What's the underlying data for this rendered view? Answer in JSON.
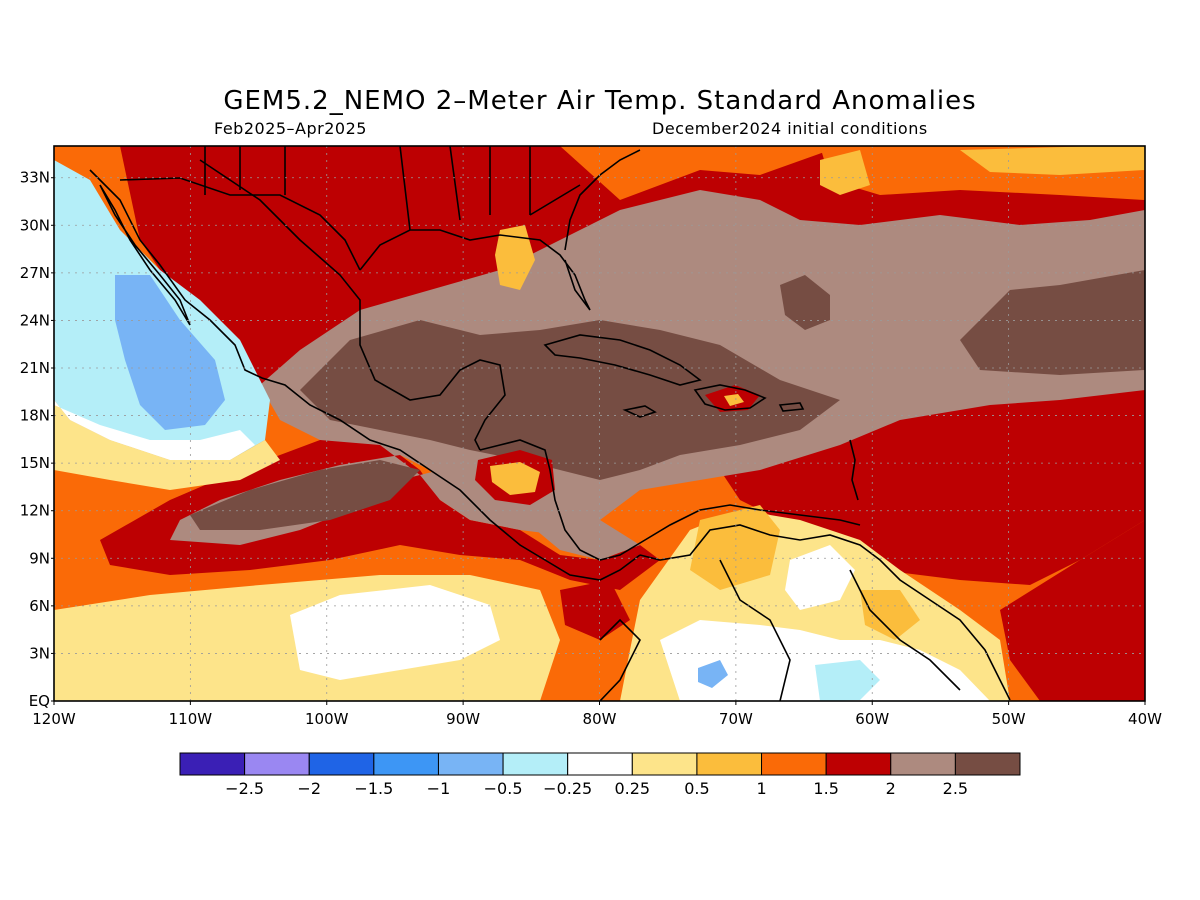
{
  "title": "GEM5.2_NEMO 2–Meter Air Temp. Standard Anomalies",
  "period": "Feb2025–Apr2025",
  "init": "December2024 initial conditions",
  "lat_labels": [
    "EQ",
    "3N",
    "6N",
    "9N",
    "12N",
    "15N",
    "18N",
    "21N",
    "24N",
    "27N",
    "30N",
    "33N"
  ],
  "lon_labels": [
    "120W",
    "110W",
    "100W",
    "90W",
    "80W",
    "70W",
    "60W",
    "50W",
    "40W"
  ],
  "colorbar": {
    "colors": [
      "#3a1fb5",
      "#9a87f2",
      "#1f64e6",
      "#3d96f5",
      "#78b4f5",
      "#b4eef8",
      "#ffffff",
      "#fde48a",
      "#fbbd3c",
      "#fa6a07",
      "#bd0002",
      "#ad8a7f",
      "#764d43"
    ],
    "labels": [
      "−2.5",
      "−2",
      "−1.5",
      "−1",
      "−0.5",
      "−0.25",
      "0.25",
      "0.5",
      "1",
      "1.5",
      "2",
      "2.5"
    ]
  },
  "regions": [
    {
      "name": "region-background-anomaly",
      "color": "#fa6a07"
    },
    {
      "name": "region-north-strong-anomaly",
      "color": "#bd0002"
    },
    {
      "name": "region-caribbean-very-strong",
      "color": "#ad8a7f"
    },
    {
      "name": "region-caribbean-core",
      "color": "#764d43"
    },
    {
      "name": "region-pacific-cold",
      "color": "#b4eef8"
    },
    {
      "name": "region-pacific-cold-core",
      "color": "#78b4f5"
    },
    {
      "name": "region-south-america-weak",
      "color": "#fde48a"
    },
    {
      "name": "region-south-america-neutral",
      "color": "#ffffff"
    }
  ]
}
